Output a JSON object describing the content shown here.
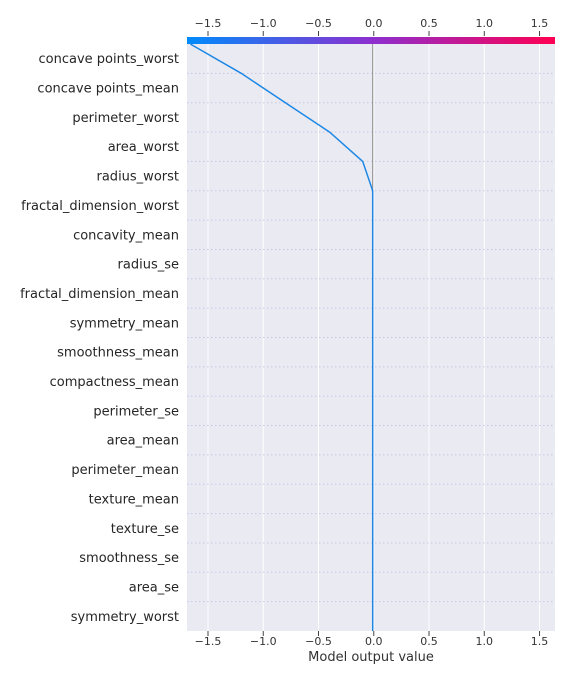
{
  "chart_data": {
    "type": "line",
    "title": "",
    "xlabel": "Model output value",
    "ylabel": "",
    "xlim": [
      -1.69,
      1.64
    ],
    "base_value": -0.01,
    "x_ticks": [
      -1.5,
      -1.0,
      -0.5,
      0.0,
      0.5,
      1.0,
      1.5
    ],
    "x_tick_labels": [
      "−1.5",
      "−1.0",
      "−0.5",
      "0.0",
      "0.5",
      "1.0",
      "1.5"
    ],
    "features": [
      "concave points_worst",
      "concave points_mean",
      "perimeter_worst",
      "area_worst",
      "radius_worst",
      "fractal_dimension_worst",
      "concavity_mean",
      "radius_se",
      "fractal_dimension_mean",
      "symmetry_mean",
      "smoothness_mean",
      "compactness_mean",
      "perimeter_se",
      "area_mean",
      "perimeter_mean",
      "texture_mean",
      "texture_se",
      "smoothness_se",
      "area_se",
      "symmetry_worst"
    ],
    "series": [
      {
        "values": [
          -1.66,
          -1.2,
          -0.8,
          -0.4,
          -0.1,
          -0.01,
          -0.01,
          -0.01,
          -0.01,
          -0.01,
          -0.01,
          -0.01,
          -0.01,
          -0.01,
          -0.01,
          -0.01,
          -0.01,
          -0.01,
          -0.01,
          -0.01,
          -0.01
        ]
      }
    ],
    "colors": {
      "line": "#1e88e5",
      "background": "#eaeaf2",
      "grid": "#ffffff",
      "row_separator": "#c8c8e6",
      "colorbar_low": "#008bfb",
      "colorbar_mid": "#8c2fd0",
      "colorbar_high": "#ff0052",
      "base_line": "#999999"
    },
    "grid": true,
    "colorbar": "top"
  }
}
